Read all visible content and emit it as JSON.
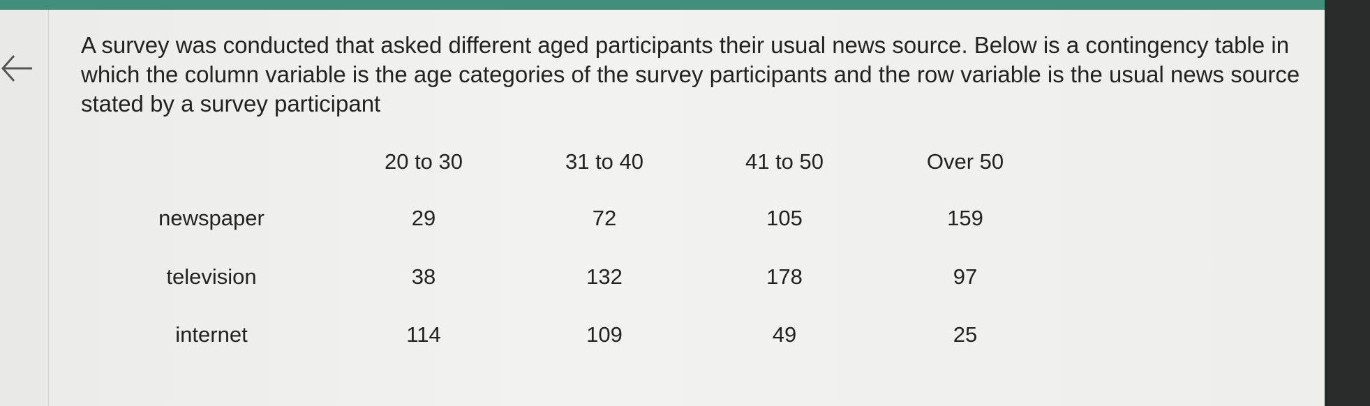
{
  "question": "A survey was conducted that asked different aged participants their usual news source. Below is a contingency table in which the column variable is the age categories of the survey participants and the row variable is the usual news source stated by a survey participant",
  "table": {
    "columns": [
      "20 to 30",
      "31 to 40",
      "41 to 50",
      "Over 50"
    ],
    "rows": [
      {
        "label": "newspaper",
        "values": [
          29,
          72,
          105,
          159
        ]
      },
      {
        "label": "television",
        "values": [
          38,
          132,
          178,
          97
        ]
      },
      {
        "label": "internet",
        "values": [
          114,
          109,
          49,
          25
        ]
      }
    ]
  }
}
